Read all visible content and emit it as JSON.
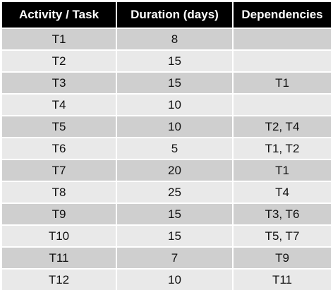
{
  "table": {
    "headers": [
      "Activity / Task",
      "Duration (days)",
      "Dependencies"
    ],
    "rows": [
      {
        "task": "T1",
        "duration": "8",
        "deps": ""
      },
      {
        "task": "T2",
        "duration": "15",
        "deps": ""
      },
      {
        "task": "T3",
        "duration": "15",
        "deps": "T1"
      },
      {
        "task": "T4",
        "duration": "10",
        "deps": ""
      },
      {
        "task": "T5",
        "duration": "10",
        "deps": "T2, T4"
      },
      {
        "task": "T6",
        "duration": "5",
        "deps": "T1, T2"
      },
      {
        "task": "T7",
        "duration": "20",
        "deps": "T1"
      },
      {
        "task": "T8",
        "duration": "25",
        "deps": "T4"
      },
      {
        "task": "T9",
        "duration": "15",
        "deps": "T3, T6"
      },
      {
        "task": "T10",
        "duration": "15",
        "deps": "T5, T7"
      },
      {
        "task": "T11",
        "duration": "7",
        "deps": "T9"
      },
      {
        "task": "T12",
        "duration": "10",
        "deps": "T11"
      }
    ],
    "colors": {
      "header_bg": "#000000",
      "header_text": "#ffffff",
      "row_dark": "#cfcfcf",
      "row_light": "#e9e9e9"
    }
  }
}
